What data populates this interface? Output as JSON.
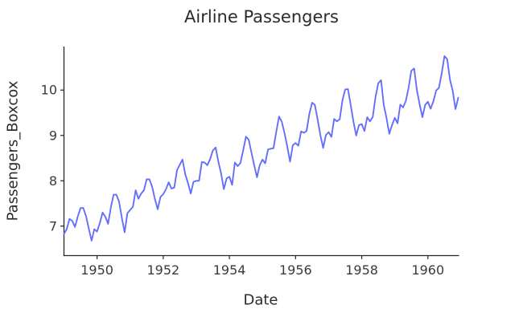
{
  "page": {
    "background": "#ffffff"
  },
  "chart_data": {
    "type": "line",
    "title": "Airline Passengers",
    "xlabel": "Date",
    "ylabel": "Passengers_Boxcox",
    "grid": false,
    "legend": false,
    "background": "#ffffff",
    "axis_color": "#262626",
    "tick_label_color": "#3a3a3a",
    "text_color": "#2b2b2b",
    "xlim": [
      1949.0,
      1960.9167
    ],
    "ylim": [
      6.35,
      10.96
    ],
    "x_ticks": {
      "values": [
        1950,
        1952,
        1954,
        1956,
        1958,
        1960
      ],
      "labels": [
        "1950",
        "1952",
        "1954",
        "1956",
        "1958",
        "1960"
      ]
    },
    "y_ticks": {
      "values": [
        7,
        8,
        9,
        10
      ],
      "labels": [
        "7",
        "8",
        "9",
        "10"
      ]
    },
    "series": [
      {
        "name": "Passengers_Boxcox",
        "color": "#636EFA",
        "x_start": "1949-01",
        "x_end": "1960-12",
        "frequency": "monthly",
        "values": [
          6.827,
          6.932,
          7.161,
          7.114,
          6.983,
          7.208,
          7.399,
          7.399,
          7.223,
          6.95,
          6.679,
          6.932,
          6.88,
          7.066,
          7.298,
          7.208,
          7.05,
          7.413,
          7.693,
          7.693,
          7.537,
          7.177,
          6.863,
          7.283,
          7.356,
          7.427,
          7.791,
          7.603,
          7.718,
          7.791,
          8.033,
          8.033,
          7.863,
          7.59,
          7.371,
          7.642,
          7.705,
          7.815,
          7.967,
          7.827,
          7.851,
          8.234,
          8.354,
          8.468,
          8.141,
          7.944,
          7.718,
          7.978,
          8.0,
          8.0,
          8.411,
          8.402,
          8.344,
          8.477,
          8.665,
          8.733,
          8.421,
          8.162,
          7.815,
          8.055,
          8.088,
          7.909,
          8.402,
          8.324,
          8.392,
          8.665,
          8.975,
          8.905,
          8.622,
          8.344,
          8.077,
          8.344,
          8.468,
          8.383,
          8.691,
          8.708,
          8.717,
          9.073,
          9.416,
          9.302,
          9.051,
          8.75,
          8.421,
          8.784,
          8.833,
          8.775,
          9.088,
          9.059,
          9.096,
          9.481,
          9.721,
          9.673,
          9.356,
          9.006,
          8.725,
          9.006,
          9.073,
          8.967,
          9.363,
          9.309,
          9.356,
          9.774,
          10.013,
          10.023,
          9.667,
          9.302,
          8.998,
          9.225,
          9.253,
          9.096,
          9.403,
          9.309,
          9.409,
          9.848,
          10.148,
          10.219,
          9.667,
          9.383,
          9.036,
          9.232,
          9.389,
          9.267,
          9.679,
          9.619,
          9.762,
          10.05,
          10.425,
          10.476,
          10.002,
          9.685,
          9.403,
          9.673,
          9.744,
          9.588,
          9.756,
          9.991,
          10.05,
          10.364,
          10.75,
          10.683,
          10.234,
          9.991,
          9.582,
          9.831
        ]
      }
    ]
  }
}
